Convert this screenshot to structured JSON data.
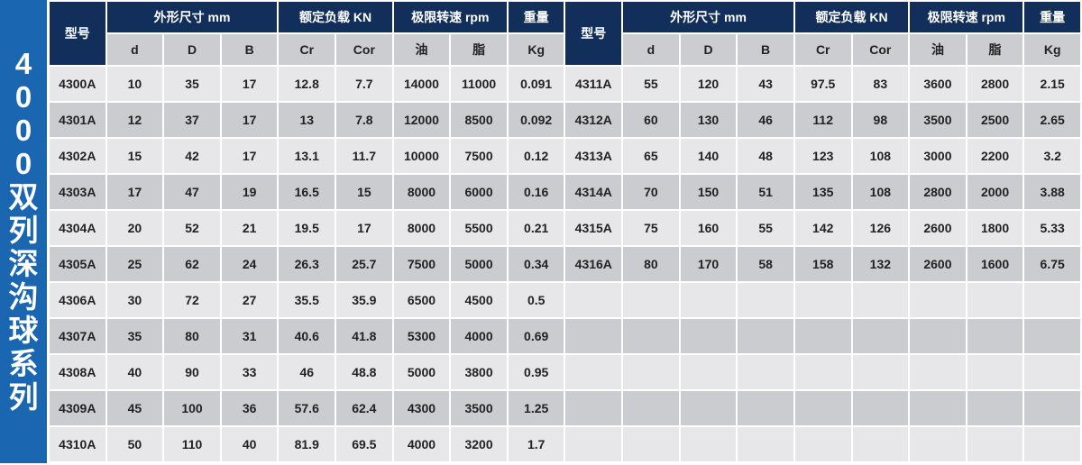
{
  "side_title": [
    "4",
    "0",
    "0",
    "0",
    "双",
    "列",
    "深",
    "沟",
    "球",
    "系",
    "列"
  ],
  "headers": {
    "model": "型号",
    "dims": "外形尺寸 mm",
    "load": "额定负载 KN",
    "speed": "极限转速 rpm",
    "weight": "重量",
    "sub": [
      "d",
      "D",
      "B",
      "Cr",
      "Cor",
      "油",
      "脂",
      "Kg"
    ]
  },
  "left_rows": [
    [
      "4300A",
      "10",
      "35",
      "17",
      "12.8",
      "7.7",
      "14000",
      "11000",
      "0.091"
    ],
    [
      "4301A",
      "12",
      "37",
      "17",
      "13",
      "7.8",
      "12000",
      "8500",
      "0.092"
    ],
    [
      "4302A",
      "15",
      "42",
      "17",
      "13.1",
      "11.7",
      "10000",
      "7500",
      "0.12"
    ],
    [
      "4303A",
      "17",
      "47",
      "19",
      "16.5",
      "15",
      "8000",
      "6000",
      "0.16"
    ],
    [
      "4304A",
      "20",
      "52",
      "21",
      "19.5",
      "17",
      "8000",
      "5500",
      "0.21"
    ],
    [
      "4305A",
      "25",
      "62",
      "24",
      "26.3",
      "25.7",
      "7500",
      "5000",
      "0.34"
    ],
    [
      "4306A",
      "30",
      "72",
      "27",
      "35.5",
      "35.9",
      "6500",
      "4500",
      "0.5"
    ],
    [
      "4307A",
      "35",
      "80",
      "31",
      "40.6",
      "41.8",
      "5300",
      "4000",
      "0.69"
    ],
    [
      "4308A",
      "40",
      "90",
      "33",
      "46",
      "48.8",
      "5000",
      "3800",
      "0.95"
    ],
    [
      "4309A",
      "45",
      "100",
      "36",
      "57.6",
      "62.4",
      "4300",
      "3500",
      "1.25"
    ],
    [
      "4310A",
      "50",
      "110",
      "40",
      "81.9",
      "69.5",
      "4000",
      "3200",
      "1.7"
    ]
  ],
  "right_rows": [
    [
      "4311A",
      "55",
      "120",
      "43",
      "97.5",
      "83",
      "3600",
      "2800",
      "2.15"
    ],
    [
      "4312A",
      "60",
      "130",
      "46",
      "112",
      "98",
      "3500",
      "2500",
      "2.65"
    ],
    [
      "4313A",
      "65",
      "140",
      "48",
      "123",
      "108",
      "3000",
      "2200",
      "3.2"
    ],
    [
      "4314A",
      "70",
      "150",
      "51",
      "135",
      "108",
      "2800",
      "2000",
      "3.88"
    ],
    [
      "4315A",
      "75",
      "160",
      "55",
      "142",
      "126",
      "2600",
      "1800",
      "5.33"
    ],
    [
      "4316A",
      "80",
      "170",
      "58",
      "158",
      "132",
      "2600",
      "1600",
      "6.75"
    ]
  ]
}
